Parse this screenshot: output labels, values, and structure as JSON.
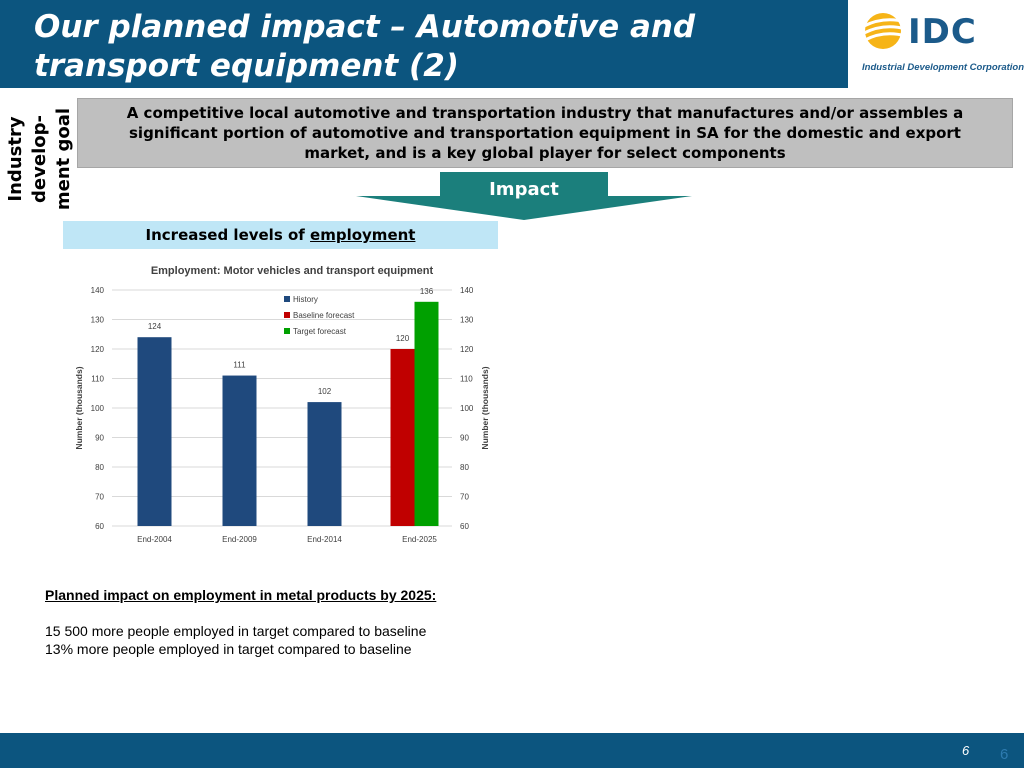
{
  "slide": {
    "title_line1": "Our planned impact – Automotive and",
    "title_line2": "transport equipment (2)",
    "logo_text": "IDC",
    "logo_subtitle": "Industrial Development Corporation",
    "side_label_line1": "Industry",
    "side_label_line2": "develop-",
    "side_label_line3": "ment goal",
    "goal_text": "A competitive local automotive and transportation industry that manufactures and/or assembles a significant portion of automotive and transportation equipment in SA  for the domestic and export market, and is a key global player for select components",
    "impact_label": "Impact",
    "employment_prefix": "Increased levels of ",
    "employment_word": "employment",
    "planned_heading": "Planned impact on employment in metal products by 2025:",
    "planned_line1": "15 500 more people employed in target compared to baseline",
    "planned_line2": "13%  more people employed in target compared to baseline",
    "page_number": "6",
    "page_number_alt": "6",
    "colors": {
      "header_blue": "#0c557f",
      "impact_teal": "#1b7f7c",
      "history": "#1f497d",
      "baseline": "#c00000",
      "target": "#00a000"
    }
  },
  "chart_data": {
    "type": "bar",
    "title": "Employment: Motor vehicles and transport equipment",
    "ylabel": "Number (thousands)",
    "ylabel_right": "Number (thousands)",
    "ylim": [
      60,
      140
    ],
    "yticks": [
      60,
      70,
      80,
      90,
      100,
      110,
      120,
      130,
      140
    ],
    "categories": [
      "End-2004",
      "End-2009",
      "End-2014",
      "End-2025"
    ],
    "series": [
      {
        "name": "History",
        "color": "#1f497d",
        "values": [
          124,
          111,
          102,
          null
        ]
      },
      {
        "name": "Baseline forecast",
        "color": "#c00000",
        "values": [
          null,
          null,
          null,
          120
        ]
      },
      {
        "name": "Target forecast",
        "color": "#00a000",
        "values": [
          null,
          null,
          null,
          136
        ]
      }
    ],
    "legend_position": "top-center",
    "grid": true
  }
}
